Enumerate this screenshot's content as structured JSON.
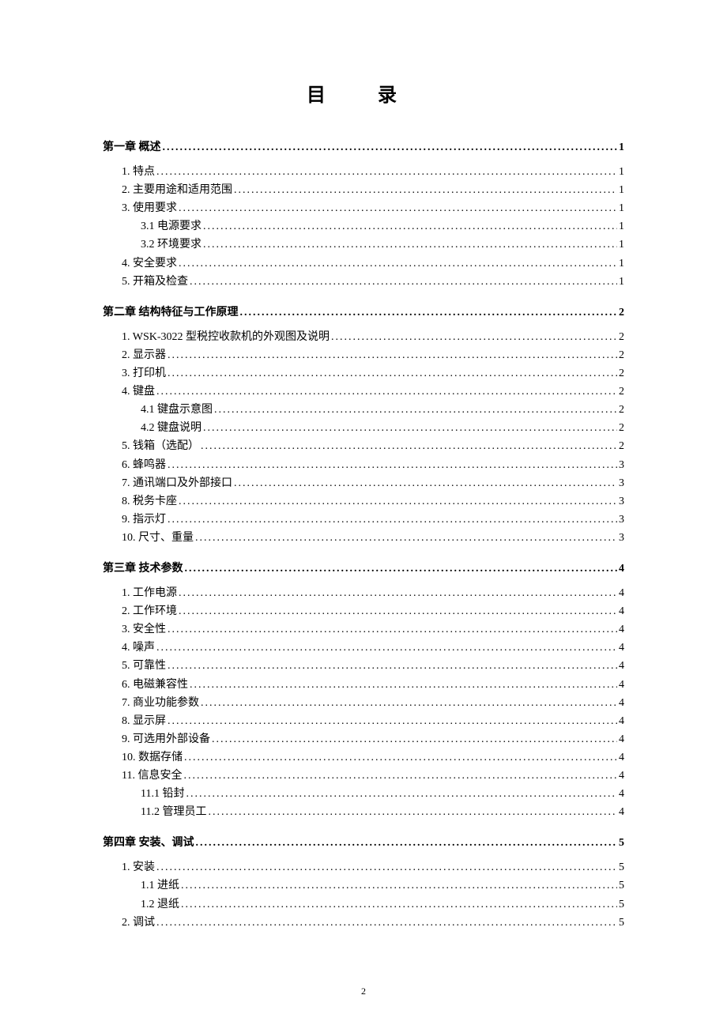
{
  "title": "目  录",
  "page_number": "2",
  "colors": {
    "background": "#ffffff",
    "text": "#000000"
  },
  "typography": {
    "title_fontsize": 24,
    "body_fontsize": 14,
    "page_num_fontsize": 12,
    "font_family": "SimSun"
  },
  "toc": [
    {
      "level": "chapter",
      "label": "第一章 概述",
      "page": "1"
    },
    {
      "level": "level1",
      "label": "1. 特点",
      "page": "1"
    },
    {
      "level": "level1",
      "label": "2. 主要用途和适用范围",
      "page": "1"
    },
    {
      "level": "level1",
      "label": "3. 使用要求",
      "page": "1"
    },
    {
      "level": "level2",
      "label": "3.1 电源要求",
      "page": "1"
    },
    {
      "level": "level2",
      "label": "3.2 环境要求",
      "page": "1"
    },
    {
      "level": "level1",
      "label": "4. 安全要求",
      "page": "1"
    },
    {
      "level": "level1",
      "label": "5. 开箱及检查",
      "page": "1"
    },
    {
      "level": "chapter",
      "label": "第二章 结构特征与工作原理",
      "page": "2"
    },
    {
      "level": "level1",
      "label": "1. WSK-3022 型税控收款机的外观图及说明",
      "page": "2"
    },
    {
      "level": "level1",
      "label": "2. 显示器",
      "page": "2"
    },
    {
      "level": "level1",
      "label": "3. 打印机",
      "page": "2"
    },
    {
      "level": "level1",
      "label": "4. 键盘",
      "page": "2"
    },
    {
      "level": "level2",
      "label": "4.1 键盘示意图",
      "page": "2"
    },
    {
      "level": "level2",
      "label": "4.2 键盘说明",
      "page": "2"
    },
    {
      "level": "level1",
      "label": "5. 钱箱（选配）",
      "page": "2"
    },
    {
      "level": "level1",
      "label": "6. 蜂鸣器",
      "page": "3"
    },
    {
      "level": "level1",
      "label": "7. 通讯端口及外部接口",
      "page": "3"
    },
    {
      "level": "level1",
      "label": "8. 税务卡座",
      "page": "3"
    },
    {
      "level": "level1",
      "label": "9. 指示灯",
      "page": "3"
    },
    {
      "level": "level1",
      "label": "10. 尺寸、重量",
      "page": "3"
    },
    {
      "level": "chapter",
      "label": "第三章 技术参数",
      "page": "4"
    },
    {
      "level": "level1",
      "label": "1. 工作电源",
      "page": "4"
    },
    {
      "level": "level1",
      "label": "2. 工作环境",
      "page": "4"
    },
    {
      "level": "level1",
      "label": "3. 安全性",
      "page": "4"
    },
    {
      "level": "level1",
      "label": "4. 噪声",
      "page": "4"
    },
    {
      "level": "level1",
      "label": "5. 可靠性",
      "page": "4"
    },
    {
      "level": "level1",
      "label": "6. 电磁兼容性",
      "page": "4"
    },
    {
      "level": "level1",
      "label": "7. 商业功能参数",
      "page": "4"
    },
    {
      "level": "level1",
      "label": "8. 显示屏",
      "page": "4"
    },
    {
      "level": "level1",
      "label": "9. 可选用外部设备",
      "page": "4"
    },
    {
      "level": "level1",
      "label": "10. 数据存储",
      "page": "4"
    },
    {
      "level": "level1",
      "label": "11. 信息安全",
      "page": "4"
    },
    {
      "level": "level2",
      "label": "11.1 铅封",
      "page": "4"
    },
    {
      "level": "level2",
      "label": "11.2 管理员工",
      "page": "4"
    },
    {
      "level": "chapter",
      "label": "第四章 安装、调试",
      "page": "5"
    },
    {
      "level": "level1",
      "label": "1. 安装",
      "page": "5"
    },
    {
      "level": "level2",
      "label": "1.1 进纸",
      "page": "5"
    },
    {
      "level": "level2",
      "label": "1.2 退纸",
      "page": "5"
    },
    {
      "level": "level1",
      "label": "2. 调试",
      "page": "5"
    }
  ]
}
